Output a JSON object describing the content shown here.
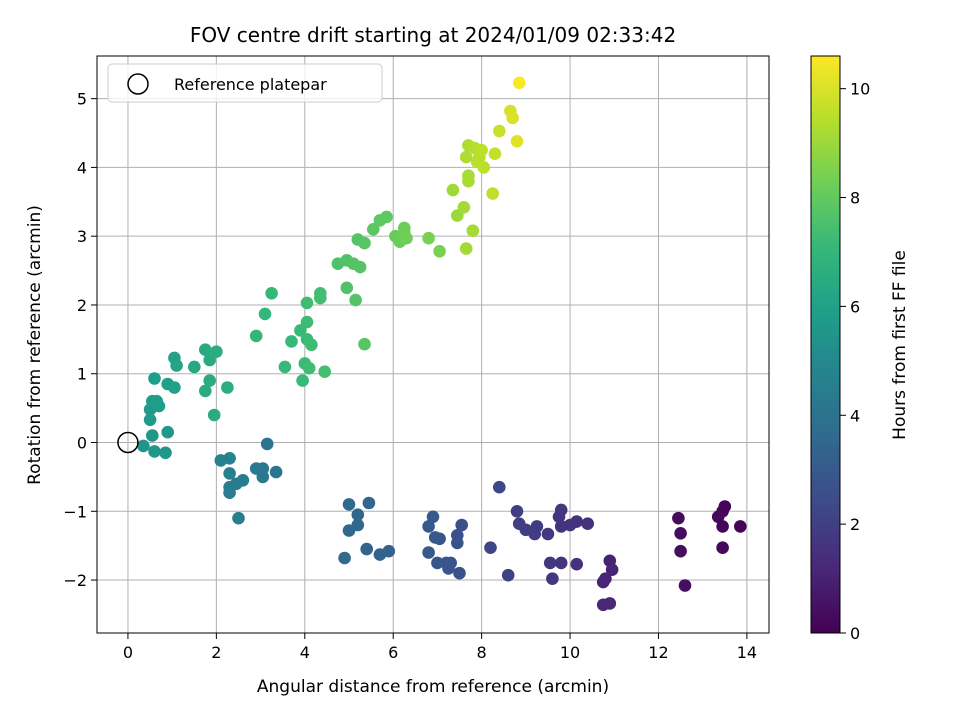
{
  "chart_data": {
    "type": "scatter",
    "title": "FOV centre drift starting at 2024/01/09 02:33:42",
    "xlabel": "Angular distance from reference (arcmin)",
    "ylabel": "Rotation from reference (arcmin)",
    "xlim": [
      -0.7,
      14.5
    ],
    "ylim": [
      -2.77,
      5.62
    ],
    "xticks": [
      0,
      2,
      4,
      6,
      8,
      10,
      12,
      14
    ],
    "yticks": [
      -2,
      -1,
      0,
      1,
      2,
      3,
      4,
      5
    ],
    "grid": true,
    "legend": {
      "position": "top-left",
      "entries": [
        "Reference platepar"
      ]
    },
    "reference_point": {
      "x": 0,
      "y": 0,
      "label": "Reference platepar"
    },
    "colorbar": {
      "label": "Hours from first FF file",
      "colormap": "viridis",
      "min": 0,
      "max": 10.6,
      "ticks": [
        0,
        2,
        4,
        6,
        8,
        10
      ]
    },
    "colormap_stops": [
      "#440154",
      "#482878",
      "#3e4989",
      "#31688e",
      "#26828e",
      "#1f9e89",
      "#35b779",
      "#6ece58",
      "#b5de2b",
      "#fde725"
    ],
    "points": [
      [
        13.5,
        -0.93,
        0.1
      ],
      [
        13.45,
        -1.0,
        0.15
      ],
      [
        13.35,
        -1.08,
        0.2
      ],
      [
        13.85,
        -1.22,
        0.12
      ],
      [
        13.45,
        -1.22,
        0.18
      ],
      [
        13.45,
        -1.53,
        0.2
      ],
      [
        12.45,
        -1.1,
        0.3
      ],
      [
        12.5,
        -1.32,
        0.35
      ],
      [
        12.5,
        -1.58,
        0.35
      ],
      [
        12.6,
        -2.08,
        0.4
      ],
      [
        10.9,
        -1.72,
        1.0
      ],
      [
        10.95,
        -1.85,
        1.05
      ],
      [
        10.8,
        -1.98,
        1.1
      ],
      [
        10.75,
        -2.03,
        1.1
      ],
      [
        10.75,
        -2.36,
        1.15
      ],
      [
        10.9,
        -2.34,
        1.2
      ],
      [
        10.4,
        -1.18,
        1.5
      ],
      [
        10.15,
        -1.15,
        1.55
      ],
      [
        10.0,
        -1.2,
        1.6
      ],
      [
        9.8,
        -1.22,
        1.6
      ],
      [
        9.75,
        -1.08,
        1.65
      ],
      [
        9.8,
        -0.98,
        1.7
      ],
      [
        9.5,
        -1.33,
        1.8
      ],
      [
        9.25,
        -1.22,
        1.85
      ],
      [
        9.2,
        -1.33,
        1.9
      ],
      [
        9.0,
        -1.27,
        1.95
      ],
      [
        8.85,
        -1.18,
        2.0
      ],
      [
        8.8,
        -1.0,
        2.0
      ],
      [
        10.15,
        -1.77,
        1.5
      ],
      [
        9.8,
        -1.75,
        1.65
      ],
      [
        9.55,
        -1.75,
        1.75
      ],
      [
        9.6,
        -1.98,
        1.75
      ],
      [
        8.6,
        -1.93,
        2.1
      ],
      [
        8.4,
        -0.65,
        2.3
      ],
      [
        8.2,
        -1.53,
        2.25
      ],
      [
        7.55,
        -1.2,
        2.6
      ],
      [
        7.45,
        -1.35,
        2.65
      ],
      [
        7.45,
        -1.46,
        2.7
      ],
      [
        7.5,
        -1.9,
        2.7
      ],
      [
        7.2,
        -1.75,
        2.75
      ],
      [
        7.25,
        -1.83,
        2.8
      ],
      [
        7.0,
        -1.75,
        2.85
      ],
      [
        7.05,
        -1.4,
        2.85
      ],
      [
        6.95,
        -1.38,
        2.9
      ],
      [
        6.8,
        -1.6,
        2.95
      ],
      [
        6.9,
        -1.08,
        2.95
      ],
      [
        6.8,
        -1.22,
        3.0
      ],
      [
        7.3,
        -1.75,
        2.8
      ],
      [
        5.9,
        -1.58,
        3.3
      ],
      [
        5.7,
        -1.63,
        3.35
      ],
      [
        5.4,
        -1.55,
        3.4
      ],
      [
        5.45,
        -0.88,
        3.5
      ],
      [
        5.2,
        -1.05,
        3.5
      ],
      [
        5.2,
        -1.2,
        3.55
      ],
      [
        5.0,
        -0.9,
        3.6
      ],
      [
        5.0,
        -1.28,
        3.6
      ],
      [
        4.9,
        -1.68,
        3.65
      ],
      [
        3.15,
        -0.02,
        4.1
      ],
      [
        3.35,
        -0.43,
        4.15
      ],
      [
        3.05,
        -0.38,
        4.2
      ],
      [
        3.05,
        -0.5,
        4.25
      ],
      [
        2.9,
        -0.38,
        4.3
      ],
      [
        2.6,
        -0.55,
        4.4
      ],
      [
        2.45,
        -0.6,
        4.45
      ],
      [
        2.3,
        -0.65,
        4.5
      ],
      [
        2.3,
        -0.73,
        4.55
      ],
      [
        2.3,
        -0.45,
        4.6
      ],
      [
        2.3,
        -0.23,
        4.65
      ],
      [
        2.1,
        -0.26,
        4.7
      ],
      [
        2.5,
        -1.1,
        4.5
      ],
      [
        0.35,
        -0.05,
        5.5
      ],
      [
        0.6,
        -0.13,
        5.55
      ],
      [
        0.85,
        -0.15,
        5.6
      ],
      [
        0.55,
        0.1,
        5.6
      ],
      [
        0.9,
        0.15,
        5.65
      ],
      [
        0.5,
        0.33,
        5.7
      ],
      [
        0.5,
        0.48,
        5.75
      ],
      [
        0.55,
        0.6,
        5.8
      ],
      [
        0.65,
        0.6,
        5.85
      ],
      [
        0.7,
        0.53,
        5.9
      ],
      [
        0.6,
        0.93,
        5.95
      ],
      [
        0.9,
        0.85,
        6.0
      ],
      [
        1.05,
        0.8,
        6.05
      ],
      [
        1.05,
        1.23,
        6.1
      ],
      [
        1.1,
        1.12,
        6.15
      ],
      [
        1.5,
        1.1,
        6.3
      ],
      [
        1.75,
        1.35,
        6.4
      ],
      [
        1.85,
        1.2,
        6.45
      ],
      [
        1.85,
        0.9,
        6.5
      ],
      [
        1.75,
        0.75,
        6.5
      ],
      [
        1.95,
        0.4,
        6.55
      ],
      [
        2.0,
        1.32,
        6.6
      ],
      [
        2.25,
        0.8,
        6.6
      ],
      [
        2.9,
        1.55,
        7.0
      ],
      [
        3.1,
        1.87,
        7.0
      ],
      [
        3.25,
        2.17,
        7.05
      ],
      [
        3.55,
        1.1,
        7.1
      ],
      [
        3.7,
        1.47,
        7.1
      ],
      [
        3.9,
        1.63,
        7.15
      ],
      [
        3.95,
        0.9,
        7.15
      ],
      [
        4.0,
        1.15,
        7.2
      ],
      [
        4.05,
        1.5,
        7.2
      ],
      [
        4.05,
        1.75,
        7.25
      ],
      [
        4.05,
        2.03,
        7.3
      ],
      [
        4.15,
        1.42,
        7.3
      ],
      [
        4.1,
        1.08,
        7.3
      ],
      [
        4.35,
        2.1,
        7.35
      ],
      [
        4.35,
        2.17,
        7.35
      ],
      [
        4.45,
        1.03,
        7.4
      ],
      [
        4.75,
        2.6,
        7.6
      ],
      [
        4.95,
        2.65,
        7.65
      ],
      [
        4.95,
        2.25,
        7.65
      ],
      [
        5.15,
        2.07,
        7.7
      ],
      [
        5.1,
        2.6,
        7.7
      ],
      [
        5.2,
        2.95,
        7.75
      ],
      [
        5.25,
        2.55,
        7.75
      ],
      [
        5.35,
        2.9,
        7.8
      ],
      [
        5.35,
        1.43,
        7.8
      ],
      [
        5.55,
        3.1,
        7.85
      ],
      [
        5.7,
        3.23,
        7.9
      ],
      [
        5.85,
        3.28,
        7.95
      ],
      [
        6.05,
        3.0,
        8.1
      ],
      [
        6.15,
        2.92,
        8.15
      ],
      [
        6.25,
        3.12,
        8.2
      ],
      [
        6.25,
        3.05,
        8.2
      ],
      [
        6.3,
        2.97,
        8.25
      ],
      [
        6.8,
        2.97,
        8.4
      ],
      [
        7.05,
        2.78,
        8.45
      ],
      [
        7.45,
        3.3,
        9.0
      ],
      [
        7.35,
        3.67,
        9.05
      ],
      [
        7.6,
        3.42,
        9.1
      ],
      [
        7.65,
        2.82,
        9.1
      ],
      [
        7.8,
        3.08,
        9.15
      ],
      [
        7.7,
        3.8,
        9.2
      ],
      [
        7.7,
        3.88,
        9.2
      ],
      [
        7.65,
        4.15,
        9.3
      ],
      [
        7.7,
        4.32,
        9.3
      ],
      [
        7.85,
        4.28,
        9.4
      ],
      [
        7.95,
        4.15,
        9.45
      ],
      [
        7.9,
        4.08,
        9.5
      ],
      [
        8.0,
        4.25,
        9.55
      ],
      [
        8.05,
        4.0,
        9.55
      ],
      [
        8.25,
        3.62,
        9.6
      ],
      [
        8.3,
        4.2,
        9.65
      ],
      [
        8.4,
        4.53,
        9.75
      ],
      [
        8.65,
        4.82,
        9.9
      ],
      [
        8.7,
        4.72,
        10.0
      ],
      [
        8.8,
        4.38,
        10.1
      ],
      [
        8.85,
        5.23,
        10.55
      ]
    ]
  }
}
